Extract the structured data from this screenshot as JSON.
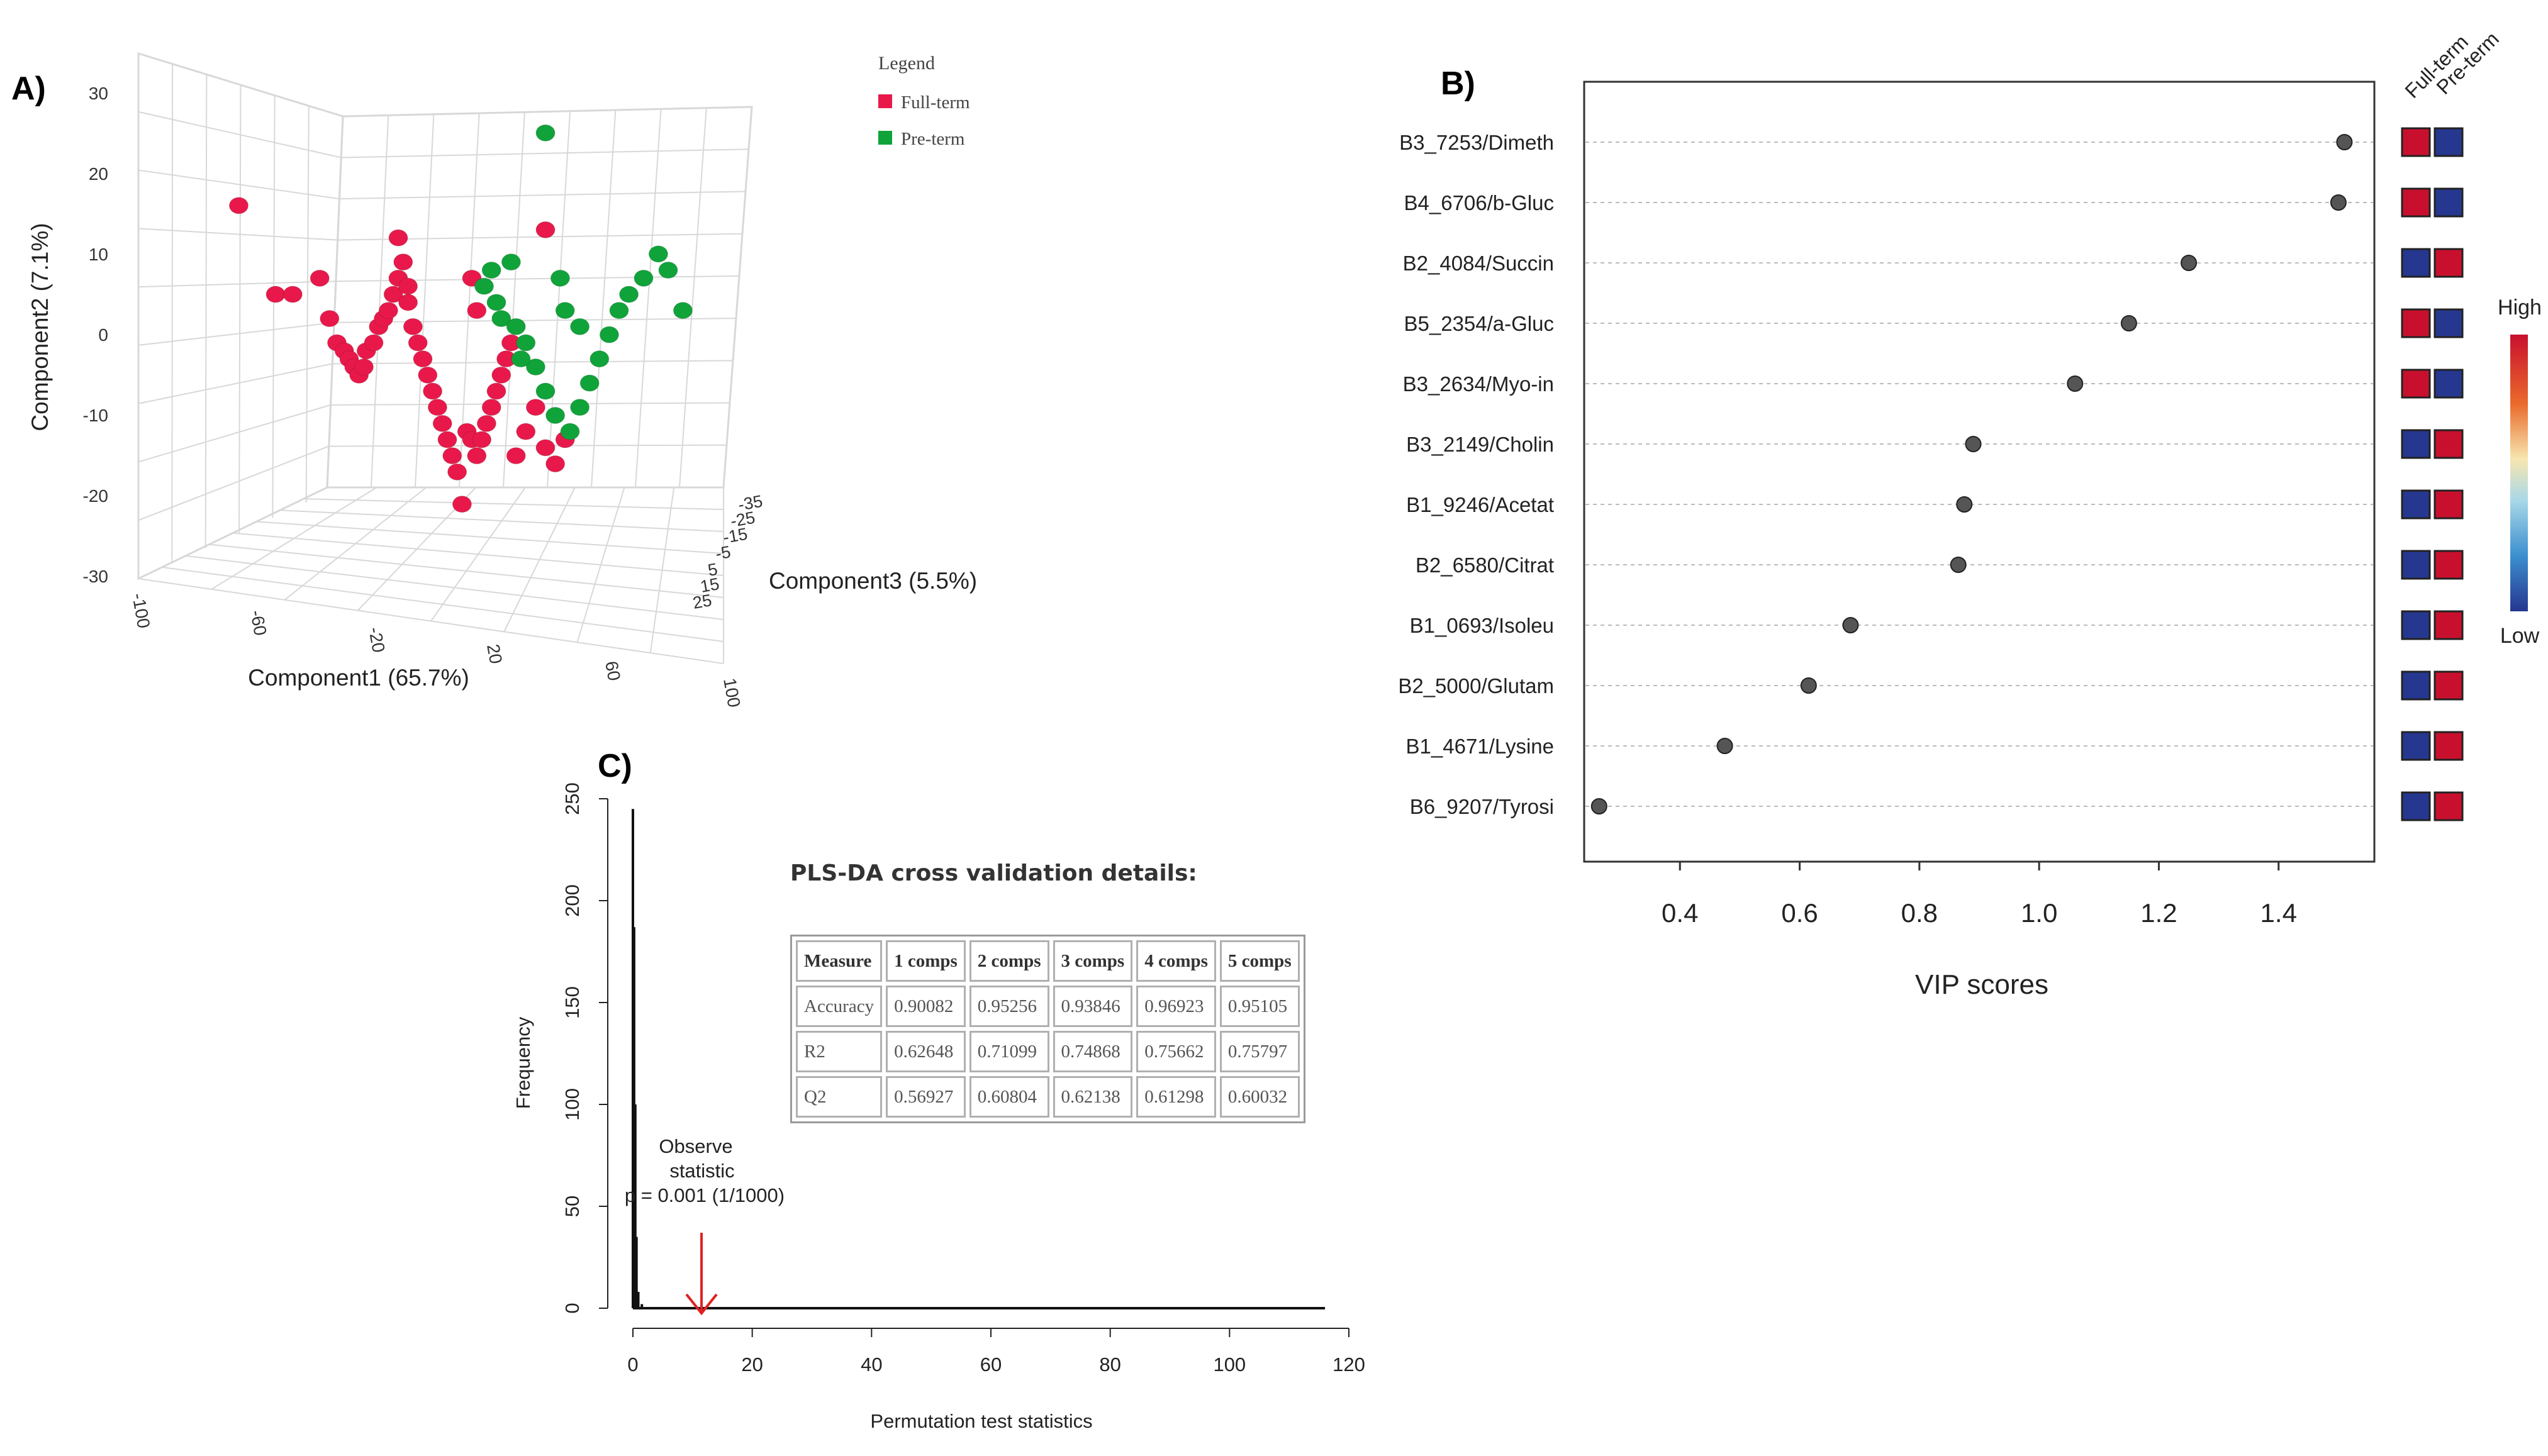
{
  "chart_data": [
    {
      "id": "A",
      "panel_label": "A)",
      "type": "scatter",
      "dimensions": 3,
      "title": "",
      "xlabel": "Component1 (65.7%)",
      "ylabel": "Component2 (7.1%)",
      "zlabel": "Component3 (5.5%)",
      "x_ticks": [
        "-100",
        "-60",
        "-20",
        "20",
        "60",
        "100"
      ],
      "y_ticks": [
        "30",
        "20",
        "10",
        "0",
        "-10",
        "-20",
        "-30"
      ],
      "z_ticks": [
        "-35",
        "-25",
        "-15",
        "-5",
        "5",
        "15",
        "25"
      ],
      "legend": {
        "title": "Legend",
        "entries": [
          "Full-term",
          "Pre-term"
        ],
        "colors": [
          "#e8194a",
          "#10a33a"
        ]
      },
      "series": [
        {
          "name": "Full-term",
          "color": "#e8194a",
          "points": [
            [
              -95,
              17
            ],
            [
              -80,
              6
            ],
            [
              -73,
              6
            ],
            [
              -62,
              8
            ],
            [
              -58,
              3
            ],
            [
              -55,
              0
            ],
            [
              -52,
              -1
            ],
            [
              -50,
              -2
            ],
            [
              -48,
              -3
            ],
            [
              -46,
              -4
            ],
            [
              -44,
              -3
            ],
            [
              -43,
              -1
            ],
            [
              -40,
              0
            ],
            [
              -38,
              2
            ],
            [
              -36,
              3
            ],
            [
              -34,
              4
            ],
            [
              -32,
              6
            ],
            [
              -30,
              8
            ],
            [
              -28,
              10
            ],
            [
              -26,
              5
            ],
            [
              -24,
              2
            ],
            [
              -22,
              0
            ],
            [
              -20,
              -2
            ],
            [
              -18,
              -4
            ],
            [
              -16,
              -6
            ],
            [
              -14,
              -8
            ],
            [
              -12,
              -10
            ],
            [
              -10,
              -12
            ],
            [
              -8,
              -14
            ],
            [
              -6,
              -16
            ],
            [
              -4,
              -20
            ],
            [
              -2,
              -11
            ],
            [
              0,
              -12
            ],
            [
              2,
              -14
            ],
            [
              4,
              -12
            ],
            [
              6,
              -10
            ],
            [
              8,
              -8
            ],
            [
              10,
              -6
            ],
            [
              12,
              -4
            ],
            [
              14,
              -2
            ],
            [
              16,
              0
            ],
            [
              18,
              -14
            ],
            [
              22,
              -11
            ],
            [
              26,
              -8
            ],
            [
              30,
              -13
            ],
            [
              34,
              -15
            ],
            [
              38,
              -12
            ],
            [
              -30,
              13
            ],
            [
              -26,
              7
            ],
            [
              0,
              8
            ],
            [
              2,
              4
            ],
            [
              30,
              14
            ]
          ]
        },
        {
          "name": "Pre-term",
          "color": "#10a33a",
          "points": [
            [
              30,
              26
            ],
            [
              8,
              9
            ],
            [
              5,
              7
            ],
            [
              10,
              5
            ],
            [
              12,
              3
            ],
            [
              18,
              2
            ],
            [
              22,
              0
            ],
            [
              26,
              -3
            ],
            [
              30,
              -6
            ],
            [
              34,
              -9
            ],
            [
              40,
              -11
            ],
            [
              44,
              -8
            ],
            [
              48,
              -5
            ],
            [
              52,
              -2
            ],
            [
              56,
              1
            ],
            [
              60,
              4
            ],
            [
              64,
              6
            ],
            [
              70,
              8
            ],
            [
              76,
              11
            ],
            [
              80,
              9
            ],
            [
              86,
              4
            ],
            [
              44,
              2
            ],
            [
              38,
              4
            ],
            [
              36,
              8
            ],
            [
              16,
              10
            ],
            [
              20,
              -2
            ]
          ]
        }
      ]
    },
    {
      "id": "B",
      "panel_label": "B)",
      "type": "scatter",
      "subtype": "dot",
      "title": "",
      "xlabel": "VIP scores",
      "ylabel": "",
      "xlim": [
        0.24,
        1.56
      ],
      "x_ticks": [
        "0.4",
        "0.6",
        "0.8",
        "1.0",
        "1.2",
        "1.4"
      ],
      "categories": [
        "B3_7253/Dimeth",
        "B4_6706/b-Gluc",
        "B2_4084/Succin",
        "B5_2354/a-Gluc",
        "B3_2634/Myo-in",
        "B3_2149/Cholin",
        "B1_9246/Acetat",
        "B2_6580/Citrat",
        "B1_0693/Isoleu",
        "B2_5000/Glutam",
        "B1_4671/Lysine",
        "B6_9207/Tyrosi"
      ],
      "values": [
        1.51,
        1.5,
        1.25,
        1.15,
        1.06,
        0.89,
        0.875,
        0.865,
        0.685,
        0.615,
        0.475,
        0.265
      ],
      "heatmap_columns": [
        "Full-term",
        "Pre-term"
      ],
      "heatmap_levels": [
        [
          "High",
          "Low"
        ],
        [
          "High",
          "Low"
        ],
        [
          "Low",
          "High"
        ],
        [
          "High",
          "Low"
        ],
        [
          "High",
          "Low"
        ],
        [
          "Low",
          "High"
        ],
        [
          "Low",
          "High"
        ],
        [
          "Low",
          "High"
        ],
        [
          "Low",
          "High"
        ],
        [
          "Low",
          "High"
        ],
        [
          "Low",
          "High"
        ],
        [
          "Low",
          "High"
        ]
      ],
      "colorbar": {
        "high_label": "High",
        "low_label": "Low",
        "high_color": "#c8102e",
        "low_color": "#26378f"
      }
    },
    {
      "id": "C",
      "panel_label": "C)",
      "type": "bar",
      "subtype": "histogram",
      "title": "",
      "xlabel": "Permutation test statistics",
      "ylabel": "Frequency",
      "xlim": [
        0,
        120
      ],
      "ylim": [
        0,
        250
      ],
      "x_ticks": [
        "0",
        "20",
        "40",
        "60",
        "80",
        "100",
        "120"
      ],
      "y_ticks": [
        "0",
        "50",
        "100",
        "150",
        "200",
        "250"
      ],
      "bins": [
        {
          "x": 0.0,
          "freq": 245
        },
        {
          "x": 0.2,
          "freq": 187
        },
        {
          "x": 0.4,
          "freq": 100
        },
        {
          "x": 0.6,
          "freq": 35
        },
        {
          "x": 0.9,
          "freq": 8
        },
        {
          "x": 1.5,
          "freq": 2
        }
      ],
      "histogram_max_x": 116,
      "annotation": {
        "text_lines": [
          "Observe",
          "statistic",
          "p = 0.001 (1/1000)"
        ],
        "arrow_x": 11.5,
        "arrow_color": "#e02020"
      }
    }
  ],
  "cv_table": {
    "title": "PLS-DA cross validation details:",
    "headers": [
      "Measure",
      "1 comps",
      "2 comps",
      "3 comps",
      "4 comps",
      "5 comps"
    ],
    "rows": [
      [
        "Accuracy",
        "0.90082",
        "0.95256",
        "0.93846",
        "0.96923",
        "0.95105"
      ],
      [
        "R2",
        "0.62648",
        "0.71099",
        "0.74868",
        "0.75662",
        "0.75797"
      ],
      [
        "Q2",
        "0.56927",
        "0.60804",
        "0.62138",
        "0.61298",
        "0.60032"
      ]
    ]
  }
}
